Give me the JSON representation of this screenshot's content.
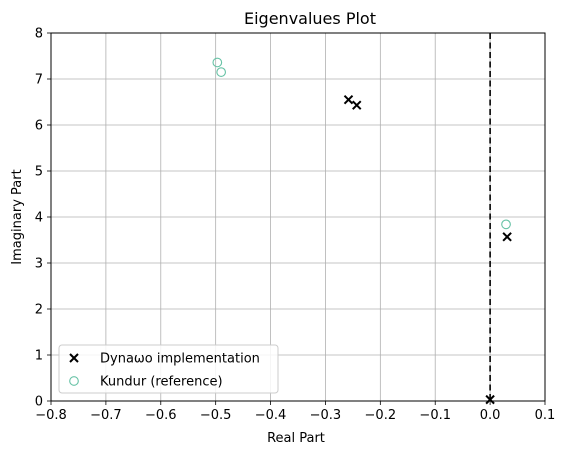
{
  "chart_data": {
    "type": "scatter",
    "title": "Eigenvalues Plot",
    "xlabel": "Real Part",
    "ylabel": "Imaginary Part",
    "xlim": [
      -0.8,
      0.1
    ],
    "ylim": [
      0,
      8
    ],
    "xticks": [
      -0.8,
      -0.7,
      -0.6,
      -0.5,
      -0.4,
      -0.3,
      -0.2,
      -0.1,
      0.0,
      0.1
    ],
    "xtick_labels": [
      "−0.8",
      "−0.7",
      "−0.6",
      "−0.5",
      "−0.4",
      "−0.3",
      "−0.2",
      "−0.1",
      "0.0",
      "0.1"
    ],
    "yticks": [
      0,
      1,
      2,
      3,
      4,
      5,
      6,
      7,
      8
    ],
    "ytick_labels": [
      "0",
      "1",
      "2",
      "3",
      "4",
      "5",
      "6",
      "7",
      "8"
    ],
    "grid": true,
    "legend_position": "lower-left",
    "vline": {
      "x": 0.0,
      "style": "dashed",
      "color": "#000000"
    },
    "series": [
      {
        "name": "Dynaωo implementation",
        "marker": "x",
        "color": "#000000",
        "points": [
          {
            "x": -0.258,
            "y": 6.55
          },
          {
            "x": -0.243,
            "y": 6.43
          },
          {
            "x": 0.031,
            "y": 3.57
          },
          {
            "x": 0.0,
            "y": 0.03
          }
        ]
      },
      {
        "name": "Kundur (reference)",
        "marker": "open-circle",
        "color": "#66c2a5",
        "points": [
          {
            "x": -0.497,
            "y": 7.36
          },
          {
            "x": -0.49,
            "y": 7.15
          },
          {
            "x": 0.029,
            "y": 3.84
          }
        ]
      }
    ]
  }
}
